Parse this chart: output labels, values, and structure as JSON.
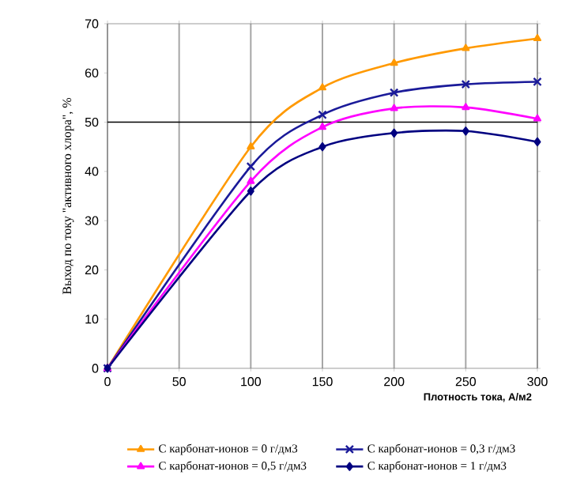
{
  "chart_data": {
    "type": "line",
    "xlabel": "Плотность тока, А/м2",
    "ylabel": "Выход по току \"активного хлора\", %",
    "x": [
      0,
      100,
      150,
      200,
      250,
      300
    ],
    "series": [
      {
        "name": "С карбонат-ионов = 0 г/дм3",
        "color": "#ff9900",
        "marker": "triangle",
        "values": [
          0,
          45,
          57,
          62,
          65,
          67
        ]
      },
      {
        "name": "С карбонат-ионов = 0,3 г/дм3",
        "color": "#1a1a99",
        "marker": "cross",
        "values": [
          0,
          41,
          51.5,
          56,
          57.7,
          58.2
        ]
      },
      {
        "name": "С карбонат-ионов = 0,5 г/дм3",
        "color": "#ff00ff",
        "marker": "triangle",
        "values": [
          0,
          38,
          49,
          52.8,
          53,
          50.7
        ]
      },
      {
        "name": "С карбонат-ионов = 1 г/дм3",
        "color": "#000080",
        "marker": "diamond",
        "values": [
          0,
          36,
          45,
          47.8,
          48.2,
          46
        ]
      }
    ],
    "xlim": [
      0,
      300
    ],
    "xticks": [
      0,
      50,
      100,
      150,
      200,
      250,
      300
    ],
    "ylim": [
      0,
      70
    ],
    "yticks": [
      0,
      10,
      20,
      30,
      40,
      50,
      60,
      70
    ],
    "grid": "x",
    "legend": "bottom",
    "ref_lines": [
      {
        "axis": "y",
        "value": 50,
        "color": "#000000"
      }
    ]
  }
}
